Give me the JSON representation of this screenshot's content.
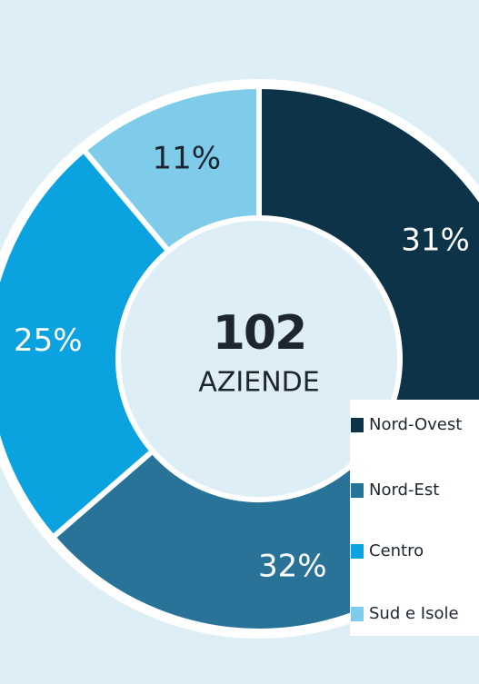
{
  "chart_data": {
    "type": "donut",
    "center_title": "102",
    "center_subtitle": "AZIENDE",
    "categories": [
      "Nord-Ovest",
      "Nord-Est",
      "Centro",
      "Sud e Isole"
    ],
    "values": [
      31,
      32,
      25,
      11
    ],
    "value_labels": [
      "31%",
      "32%",
      "25%",
      "11%"
    ],
    "colors": [
      "#0c3347",
      "#2a7398",
      "#0aa3df",
      "#7fcbea"
    ],
    "legend": "bottom-right"
  }
}
